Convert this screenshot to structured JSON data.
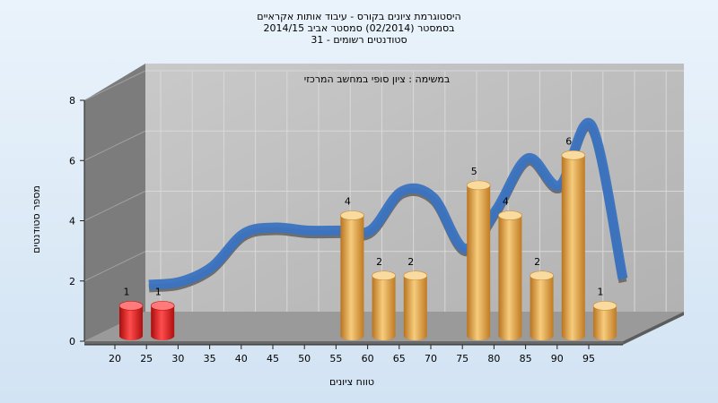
{
  "header": {
    "title_lines": [
      "היסטוגרמת ציונים בקורס - עיבוד אותות אקראיים",
      "בסמסטר  (02/2014)  סמסטר אביב 2014/15",
      "סטודנטים רשומים - 31"
    ]
  },
  "chart_data": {
    "type": "bar",
    "title": "היסטוגרמת ציונים בקורס - עיבוד אותות אקראיים",
    "subtitle": "בסמסטר  (02/2014)  סמסטר אביב 2014/15 / סטודנטים רשומים - 31",
    "inner_label": "במשימה : ציון סופי במחשב המרכזי",
    "xlabel": "טווח ציונים",
    "ylabel": "מספר סטודנטים",
    "categories": [
      "20",
      "25",
      "30",
      "35",
      "40",
      "45",
      "50",
      "55",
      "60",
      "65",
      "70",
      "75",
      "80",
      "85",
      "90",
      "95"
    ],
    "values": [
      1,
      1,
      0,
      0,
      0,
      0,
      0,
      4,
      2,
      2,
      0,
      5,
      4,
      2,
      6,
      1
    ],
    "y_ticks": [
      "0",
      "2",
      "4",
      "6",
      "8"
    ],
    "ylim": [
      0,
      8
    ],
    "grid": true,
    "colors": {
      "fail_bar": "#e01818",
      "pass_bar": "#e2a03a",
      "curve_back": "#6e6e6e",
      "curve_front": "#3a72c0",
      "wall": "#7c7c7c",
      "back_wall": "#bdbdbd",
      "floor": "#9a9a9a"
    },
    "fail_threshold_index": 1,
    "curve": [
      1.4,
      1.5,
      2.0,
      3.1,
      3.3,
      3.2,
      3.2,
      3.2,
      4.5,
      4.3,
      2.6,
      3.9,
      5.6,
      4.7,
      6.7,
      1.6
    ]
  }
}
